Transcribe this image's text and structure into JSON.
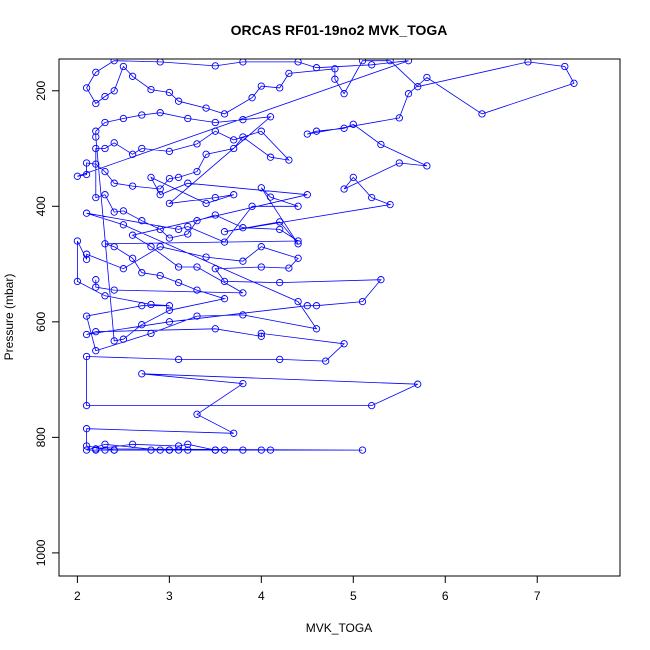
{
  "chart_data": {
    "type": "line",
    "title": "ORCAS RF01-19no2 MVK_TOGA",
    "xlabel": "MVK_TOGA",
    "ylabel": "Pressure (mbar)",
    "xlim": [
      1.8,
      7.9
    ],
    "ylim": [
      1040,
      145
    ],
    "y_reversed": true,
    "x_ticks": [
      2,
      3,
      4,
      5,
      6,
      7
    ],
    "x_tick_labels": [
      "2",
      "3",
      "4",
      "5",
      "6",
      "7"
    ],
    "y_ticks": [
      200,
      400,
      600,
      800,
      1000
    ],
    "y_tick_labels": [
      "200",
      "400",
      "600",
      "800",
      "1000"
    ],
    "grid": false,
    "legend": "none",
    "series_color": "#0000ff",
    "marker": "open-circle",
    "series": [
      {
        "points": [
          [
            2.2,
            822
          ],
          [
            2.3,
            822
          ],
          [
            2.4,
            822
          ],
          [
            2.8,
            822
          ],
          [
            3.0,
            822
          ],
          [
            3.1,
            822
          ],
          [
            3.5,
            822
          ],
          [
            3.8,
            822
          ],
          [
            4.1,
            822
          ],
          [
            5.1,
            822
          ],
          [
            2.2,
            820
          ],
          [
            2.6,
            812
          ],
          [
            3.1,
            815
          ],
          [
            3.2,
            812
          ],
          [
            3.5,
            822
          ],
          [
            4.0,
            822
          ],
          [
            3.6,
            822
          ],
          [
            3.2,
            822
          ],
          [
            3.0,
            822
          ],
          [
            2.9,
            822
          ],
          [
            2.3,
            812
          ],
          [
            2.1,
            822
          ],
          [
            2.4,
            822
          ],
          [
            2.1,
            815
          ],
          [
            2.1,
            785
          ],
          [
            3.7,
            793
          ],
          [
            3.3,
            760
          ],
          [
            3.8,
            707
          ],
          [
            2.7,
            690
          ],
          [
            5.7,
            708
          ],
          [
            5.2,
            745
          ],
          [
            2.1,
            745
          ],
          [
            2.1,
            660
          ],
          [
            3.1,
            665
          ],
          [
            4.2,
            665
          ],
          [
            4.7,
            668
          ],
          [
            4.9,
            638
          ],
          [
            4.0,
            620
          ],
          [
            4.0,
            625
          ],
          [
            3.5,
            612
          ],
          [
            2.2,
            617
          ],
          [
            2.1,
            622
          ],
          [
            3.0,
            600
          ],
          [
            4.5,
            572
          ],
          [
            4.6,
            572
          ],
          [
            5.1,
            565
          ],
          [
            5.3,
            527
          ],
          [
            4.2,
            532
          ],
          [
            3.6,
            530
          ],
          [
            3.5,
            508
          ],
          [
            4.0,
            505
          ],
          [
            4.3,
            507
          ],
          [
            4.4,
            490
          ],
          [
            4.0,
            470
          ],
          [
            3.8,
            495
          ],
          [
            3.4,
            488
          ],
          [
            2.9,
            470
          ],
          [
            2.5,
            508
          ],
          [
            2.1,
            483
          ],
          [
            2.1,
            492
          ],
          [
            2.0,
            460
          ],
          [
            2.0,
            530
          ],
          [
            2.3,
            555
          ],
          [
            2.8,
            570
          ],
          [
            3.0,
            572
          ],
          [
            2.7,
            572
          ],
          [
            2.1,
            590
          ],
          [
            2.2,
            650
          ],
          [
            2.8,
            620
          ],
          [
            3.3,
            590
          ],
          [
            3.8,
            588
          ],
          [
            4.6,
            612
          ],
          [
            4.4,
            565
          ],
          [
            2.5,
            432
          ],
          [
            2.1,
            412
          ],
          [
            3.1,
            440
          ],
          [
            3.2,
            435
          ],
          [
            3.6,
            462
          ],
          [
            3.9,
            400
          ],
          [
            4.4,
            400
          ],
          [
            4.1,
            384
          ],
          [
            4.0,
            368
          ],
          [
            4.4,
            465
          ],
          [
            4.2,
            427
          ],
          [
            3.6,
            444
          ],
          [
            5.4,
            397
          ],
          [
            5.2,
            385
          ],
          [
            5.0,
            350
          ],
          [
            4.9,
            370
          ],
          [
            5.5,
            325
          ],
          [
            5.8,
            330
          ],
          [
            5.3,
            293
          ],
          [
            5.0,
            258
          ],
          [
            4.9,
            265
          ],
          [
            4.6,
            270
          ],
          [
            4.5,
            275
          ],
          [
            5.5,
            247
          ],
          [
            5.6,
            205
          ],
          [
            5.8,
            177
          ],
          [
            6.4,
            240
          ],
          [
            7.4,
            187
          ],
          [
            7.3,
            158
          ],
          [
            6.9,
            150
          ],
          [
            5.7,
            193
          ],
          [
            5.4,
            148
          ],
          [
            5.1,
            148
          ],
          [
            4.9,
            205
          ],
          [
            4.8,
            180
          ],
          [
            4.8,
            162
          ],
          [
            4.3,
            170
          ],
          [
            4.2,
            195
          ],
          [
            4.0,
            192
          ],
          [
            3.9,
            212
          ],
          [
            3.6,
            240
          ],
          [
            3.4,
            230
          ],
          [
            3.1,
            218
          ],
          [
            3.0,
            203
          ],
          [
            2.8,
            198
          ],
          [
            2.6,
            175
          ],
          [
            2.5,
            158
          ],
          [
            2.4,
            200
          ],
          [
            2.3,
            210
          ],
          [
            2.2,
            222
          ],
          [
            2.1,
            195
          ],
          [
            2.2,
            168
          ],
          [
            2.4,
            148
          ],
          [
            2.9,
            150
          ],
          [
            3.5,
            157
          ],
          [
            3.8,
            150
          ],
          [
            4.4,
            150
          ],
          [
            4.6,
            160
          ],
          [
            5.2,
            155
          ],
          [
            5.6,
            148
          ],
          [
            2.0,
            348
          ],
          [
            2.1,
            345
          ],
          [
            2.1,
            325
          ],
          [
            2.2,
            327
          ],
          [
            2.3,
            340
          ],
          [
            2.4,
            360
          ],
          [
            2.6,
            365
          ],
          [
            2.9,
            370
          ],
          [
            3.0,
            352
          ],
          [
            3.1,
            350
          ],
          [
            3.3,
            340
          ],
          [
            3.4,
            310
          ],
          [
            3.7,
            300
          ],
          [
            3.8,
            280
          ],
          [
            4.1,
            315
          ],
          [
            4.3,
            320
          ],
          [
            4.0,
            270
          ],
          [
            3.7,
            285
          ],
          [
            3.5,
            270
          ],
          [
            3.3,
            292
          ],
          [
            3.0,
            305
          ],
          [
            2.7,
            300
          ],
          [
            2.6,
            310
          ],
          [
            2.4,
            290
          ],
          [
            2.3,
            300
          ],
          [
            2.2,
            300
          ],
          [
            2.2,
            385
          ],
          [
            2.3,
            380
          ],
          [
            2.4,
            410
          ],
          [
            2.5,
            408
          ],
          [
            2.7,
            425
          ],
          [
            2.9,
            440
          ],
          [
            3.0,
            455
          ],
          [
            3.2,
            448
          ],
          [
            3.3,
            425
          ],
          [
            3.5,
            415
          ],
          [
            3.8,
            437
          ],
          [
            4.2,
            440
          ],
          [
            4.4,
            460
          ],
          [
            2.3,
            465
          ],
          [
            2.4,
            470
          ],
          [
            2.6,
            490
          ],
          [
            2.7,
            515
          ],
          [
            2.9,
            520
          ],
          [
            3.1,
            532
          ],
          [
            3.3,
            545
          ],
          [
            3.6,
            560
          ],
          [
            3.0,
            580
          ],
          [
            2.7,
            605
          ],
          [
            2.5,
            630
          ],
          [
            2.4,
            633
          ],
          [
            2.2,
            280
          ],
          [
            2.2,
            270
          ],
          [
            2.3,
            255
          ],
          [
            2.5,
            248
          ],
          [
            2.7,
            242
          ],
          [
            2.9,
            238
          ],
          [
            3.2,
            248
          ],
          [
            3.5,
            255
          ],
          [
            3.8,
            250
          ],
          [
            4.1,
            245
          ],
          [
            3.0,
            395
          ],
          [
            3.5,
            385
          ],
          [
            3.7,
            380
          ],
          [
            3.4,
            395
          ],
          [
            2.8,
            350
          ],
          [
            2.9,
            380
          ],
          [
            3.2,
            360
          ],
          [
            4.5,
            380
          ],
          [
            2.6,
            450
          ],
          [
            2.8,
            470
          ],
          [
            3.1,
            505
          ],
          [
            3.3,
            505
          ],
          [
            3.8,
            550
          ],
          [
            2.4,
            545
          ],
          [
            2.2,
            540
          ],
          [
            2.2,
            527
          ]
        ]
      }
    ]
  }
}
